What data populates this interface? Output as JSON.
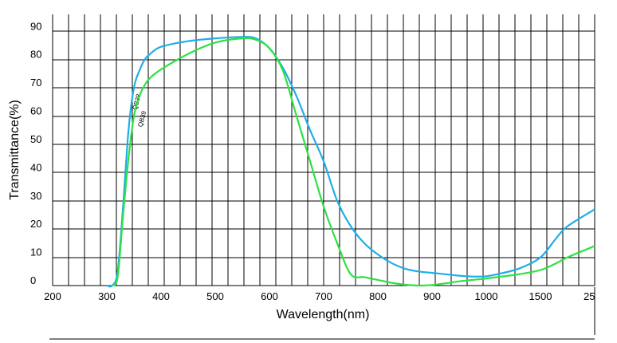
{
  "chart_data": {
    "type": "line",
    "xlabel": "Wavelength(nm)",
    "ylabel": "Transmittance(%)",
    "x_ticks": [
      "200",
      "300",
      "400",
      "500",
      "600",
      "700",
      "800",
      "900",
      "1000",
      "1500",
      "25"
    ],
    "y_ticks": [
      0,
      10,
      20,
      30,
      40,
      50,
      60,
      70,
      80,
      90
    ],
    "ylim": [
      0,
      96
    ],
    "grid": true,
    "legend": "none",
    "series": [
      {
        "name": "QB38",
        "color": "#1eaee8",
        "x": [
          300,
          310,
          320,
          330,
          340,
          350,
          360,
          370,
          380,
          400,
          450,
          500,
          550,
          575,
          600,
          625,
          650,
          675,
          700,
          725,
          750,
          775,
          800,
          825,
          850,
          875,
          900,
          925,
          950,
          975,
          1000,
          1100,
          1300,
          1500,
          1800,
          2000,
          2500
        ],
        "y": [
          0,
          0,
          5,
          28,
          55,
          70,
          76,
          80,
          82,
          84.5,
          86.5,
          87.5,
          88,
          87.5,
          84,
          77,
          67,
          55,
          44,
          30,
          21,
          15,
          11,
          8,
          6,
          5,
          4.5,
          4,
          3.5,
          3.2,
          3.3,
          4,
          6,
          10,
          17,
          21,
          27
        ]
      },
      {
        "name": "QB39",
        "color": "#2fe044",
        "x": [
          310,
          320,
          330,
          340,
          350,
          360,
          370,
          380,
          400,
          450,
          500,
          550,
          575,
          600,
          625,
          650,
          675,
          700,
          725,
          750,
          775,
          800,
          825,
          850,
          875,
          900,
          925,
          950,
          975,
          1000,
          1100,
          1300,
          1500,
          1800,
          2000,
          2500
        ],
        "y": [
          0,
          3,
          25,
          45,
          60,
          67,
          71,
          73.5,
          76.5,
          82,
          86,
          87.5,
          87,
          84,
          76,
          60,
          44,
          28,
          15,
          4,
          3,
          2,
          1,
          0.3,
          0,
          0.2,
          0.8,
          1.5,
          2,
          2.5,
          3,
          4,
          5.5,
          8,
          10,
          14
        ]
      }
    ]
  }
}
